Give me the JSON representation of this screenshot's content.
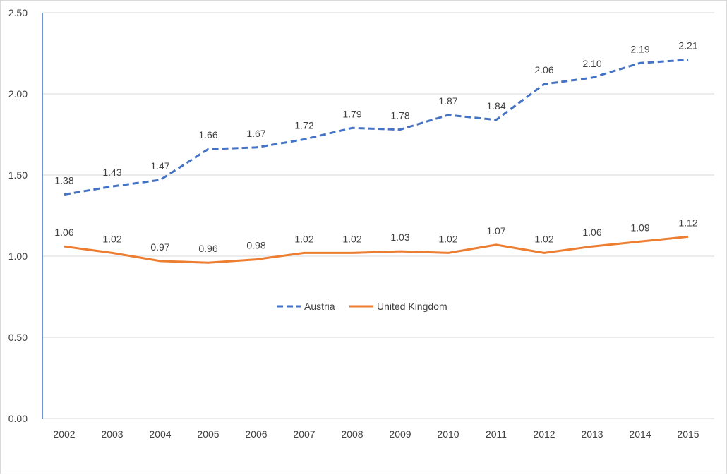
{
  "chart_data": {
    "type": "line",
    "title": "",
    "xlabel": "",
    "ylabel": "",
    "ylim": [
      0,
      2.5
    ],
    "yticks": [
      "0.00",
      "0.50",
      "1.00",
      "1.50",
      "2.00",
      "2.50"
    ],
    "grid": true,
    "legend_position": "center",
    "categories": [
      "2002",
      "2003",
      "2004",
      "2005",
      "2006",
      "2007",
      "2008",
      "2009",
      "2010",
      "2011",
      "2012",
      "2013",
      "2014",
      "2015"
    ],
    "series": [
      {
        "name": "Austria",
        "color": "#4472c4",
        "line_style": "dashed",
        "values": [
          1.38,
          1.43,
          1.47,
          1.66,
          1.67,
          1.72,
          1.79,
          1.78,
          1.87,
          1.84,
          2.06,
          2.1,
          2.19,
          2.21
        ],
        "labels": [
          "1.38",
          "1.43",
          "1.47",
          "1.66",
          "1.67",
          "1.72",
          "1.79",
          "1.78",
          "1.87",
          "1.84",
          "2.06",
          "2.10",
          "2.19",
          "2.21"
        ]
      },
      {
        "name": "United Kingdom",
        "color": "#ed7d31",
        "line_style": "solid",
        "values": [
          1.06,
          1.02,
          0.97,
          0.96,
          0.98,
          1.02,
          1.02,
          1.03,
          1.02,
          1.07,
          1.02,
          1.06,
          1.09,
          1.12
        ],
        "labels": [
          "1.06",
          "1.02",
          "0.97",
          "0.96",
          "0.98",
          "1.02",
          "1.02",
          "1.03",
          "1.02",
          "1.07",
          "1.02",
          "1.06",
          "1.09",
          "1.12"
        ]
      }
    ]
  }
}
